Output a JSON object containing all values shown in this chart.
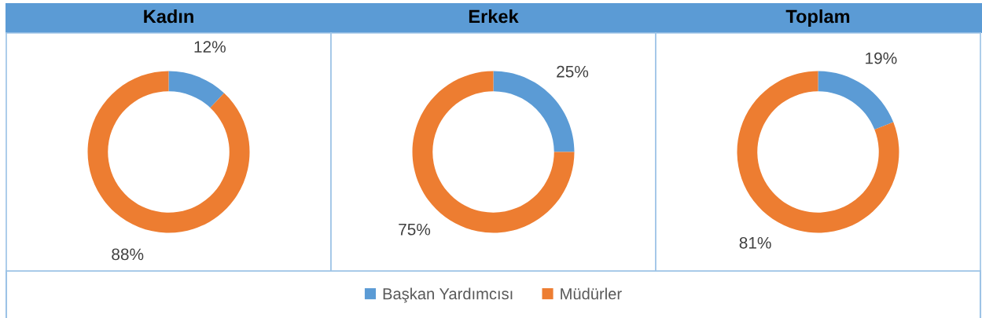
{
  "chart_data": [
    {
      "type": "donut",
      "title": "Kadın",
      "categories": [
        "Başkan Yardımcısı",
        "Müdürler"
      ],
      "values": [
        12,
        88
      ],
      "colors": [
        "#5b9bd5",
        "#ed7d31"
      ],
      "value_labels": [
        "12%",
        "88%"
      ],
      "legend": "bottom"
    },
    {
      "type": "donut",
      "title": "Erkek",
      "categories": [
        null,
        null
      ],
      "values": [
        25,
        75
      ],
      "colors": [
        "#5b9bd5",
        "#ed7d31"
      ],
      "value_labels": [
        "25%",
        "75%"
      ]
    },
    {
      "type": "donut",
      "title": "Toplam",
      "categories": [
        null,
        null
      ],
      "values": [
        19,
        81
      ],
      "colors": [
        "#5b9bd5",
        "#ed7d31"
      ],
      "value_labels": [
        "19%",
        "81%"
      ]
    }
  ]
}
